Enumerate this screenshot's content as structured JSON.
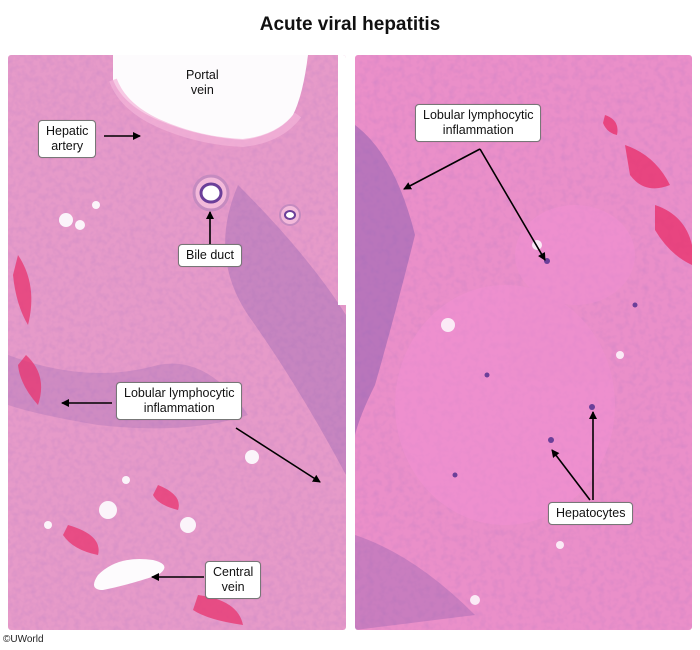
{
  "figure": {
    "title": "Acute viral hepatitis",
    "copyright": "©UWorld"
  },
  "left_panel": {
    "portal_vein": "Portal\nvein",
    "hepatic_artery": "Hepatic\nartery",
    "bile_duct": "Bile duct",
    "lobular_inflammation": "Lobular lymphocytic\ninflammation",
    "central_vein": "Central\nvein"
  },
  "right_panel": {
    "lobular_inflammation": "Lobular lymphocytic\ninflammation",
    "hepatocytes": "Hepatocytes"
  },
  "colors": {
    "tissue_pink": "#e48fc4",
    "nuclei_purple": "#5a3f8e",
    "hemorrhage_red": "#e8336e",
    "lumen_white": "#ffffff"
  }
}
